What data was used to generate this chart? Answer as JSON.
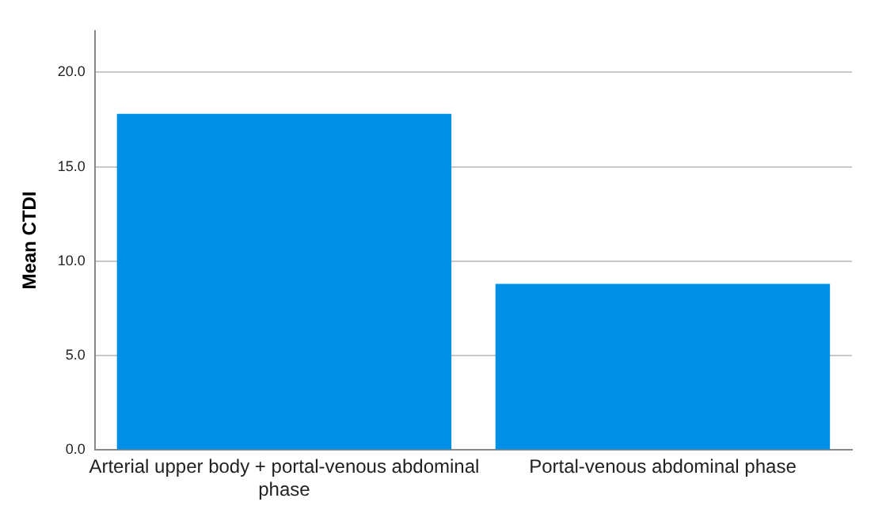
{
  "chart_data": {
    "type": "bar",
    "ylabel": "Mean CTDI",
    "categories": [
      "Arterial upper body + portal-venous abdominal phase",
      "Portal-venous abdominal phase"
    ],
    "values": [
      17.8,
      8.8
    ],
    "color": "#0090e6",
    "ylim": [
      0,
      22.2
    ],
    "yticks": [
      {
        "value": 0,
        "label": "0.0"
      },
      {
        "value": 5,
        "label": "5.0"
      },
      {
        "value": 10,
        "label": "10.0"
      },
      {
        "value": 15,
        "label": "15.0"
      },
      {
        "value": 20,
        "label": "20.0"
      }
    ],
    "grid": "y",
    "legend": false
  }
}
